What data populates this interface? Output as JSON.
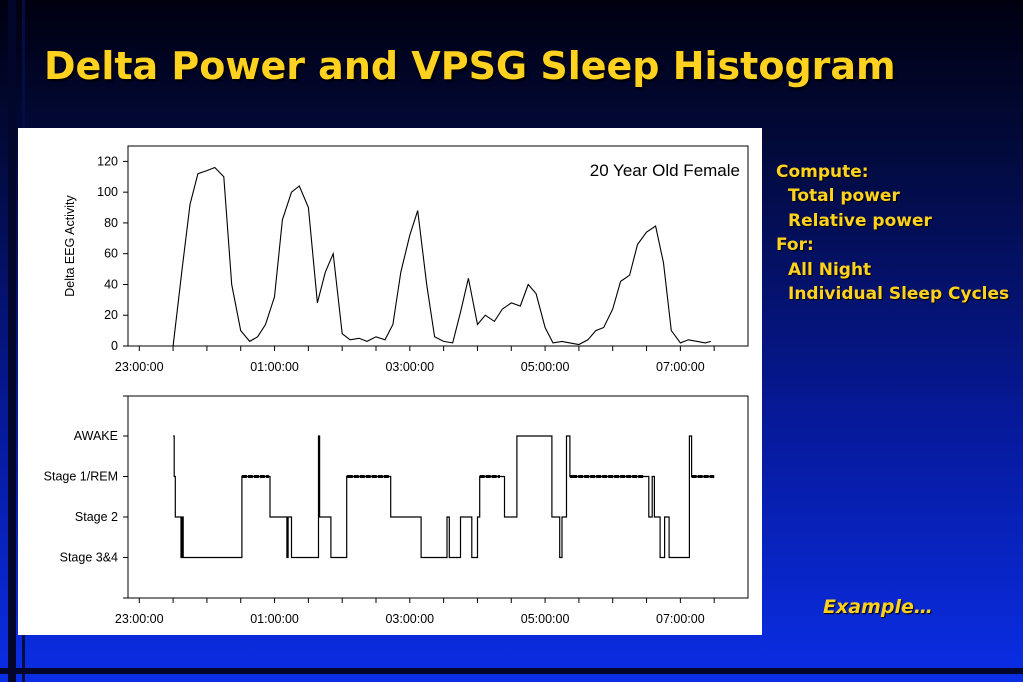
{
  "slide": {
    "title": "Delta Power and VPSG Sleep Histogram",
    "notes": {
      "compute_label": "Compute:",
      "compute_items": [
        "Total power",
        "Relative power"
      ],
      "for_label": "For:",
      "for_items": [
        "All Night",
        "Individual Sleep Cycles"
      ]
    },
    "example_label": "Example…"
  },
  "chart_data": [
    {
      "type": "line",
      "annotation": "20 Year Old Female",
      "ylabel": "Delta EEG Activity",
      "xlabel": "",
      "ylim": [
        0,
        130
      ],
      "yticks": [
        0,
        20,
        40,
        60,
        80,
        100,
        120
      ],
      "x_tick_labels": [
        "23:00:00",
        "01:00:00",
        "03:00:00",
        "05:00:00",
        "07:00:00"
      ],
      "series": [
        {
          "x": [
            "23:30",
            "23:38",
            "23:45",
            "23:52",
            "00:00",
            "00:07",
            "00:15",
            "00:22",
            "00:30",
            "00:38",
            "00:45",
            "00:52",
            "01:00",
            "01:07",
            "01:15",
            "01:22",
            "01:30",
            "01:38",
            "01:45",
            "01:52",
            "02:00",
            "02:07",
            "02:15",
            "02:22",
            "02:30",
            "02:38",
            "02:45",
            "02:52",
            "03:00",
            "03:07",
            "03:15",
            "03:22",
            "03:30",
            "03:38",
            "03:45",
            "03:52",
            "04:00",
            "04:07",
            "04:15",
            "04:22",
            "04:30",
            "04:38",
            "04:45",
            "04:52",
            "05:00",
            "05:07",
            "05:15",
            "05:22",
            "05:30",
            "05:38",
            "05:45",
            "05:52",
            "06:00",
            "06:07",
            "06:15",
            "06:22",
            "06:30",
            "06:38",
            "06:45",
            "06:52",
            "07:00",
            "07:07",
            "07:15",
            "07:22",
            "07:27"
          ],
          "y": [
            0,
            50,
            92,
            112,
            114,
            116,
            110,
            40,
            10,
            3,
            6,
            14,
            32,
            82,
            100,
            104,
            90,
            28,
            48,
            60,
            8,
            4,
            5,
            3,
            6,
            4,
            14,
            48,
            72,
            88,
            40,
            6,
            3,
            2,
            22,
            44,
            14,
            20,
            16,
            24,
            28,
            26,
            40,
            34,
            12,
            2,
            3,
            2,
            1,
            4,
            10,
            12,
            24,
            42,
            46,
            66,
            74,
            78,
            54,
            10,
            2,
            4,
            3,
            2,
            3
          ]
        }
      ]
    },
    {
      "type": "line",
      "ylabel": "",
      "xlabel": "",
      "y_categories": [
        "AWAKE",
        "Stage 1/REM",
        "Stage 2",
        "Stage 3&4"
      ],
      "x_tick_labels": [
        "23:00:00",
        "01:00:00",
        "03:00:00",
        "05:00:00",
        "07:00:00"
      ],
      "series": [
        {
          "x": [
            "23:30",
            "23:31",
            "23:32",
            "23:36",
            "23:37",
            "23:38",
            "23:39",
            "23:40",
            "00:30",
            "00:31",
            "00:55",
            "00:56",
            "01:10",
            "01:11",
            "01:12",
            "01:14",
            "01:15",
            "01:38",
            "01:39",
            "01:40",
            "01:42",
            "01:50",
            "01:52",
            "02:04",
            "02:05",
            "02:42",
            "02:43",
            "03:05",
            "03:10",
            "03:15",
            "03:33",
            "03:35",
            "03:45",
            "03:55",
            "04:00",
            "04:02",
            "04:20",
            "04:24",
            "04:34",
            "04:35",
            "05:06",
            "05:08",
            "05:13",
            "05:15",
            "05:19",
            "05:22",
            "05:24",
            "06:27",
            "06:32",
            "06:35",
            "06:37",
            "06:42",
            "06:46",
            "06:50",
            "07:05",
            "07:08",
            "07:10",
            "07:30"
          ],
          "y": [
            "AWAKE",
            "Stage 1/REM",
            "Stage 2",
            "Stage 2",
            "Stage 3&4",
            "Stage 2",
            "Stage 3&4",
            "Stage 3&4",
            "Stage 3&4",
            "Stage 1/REM",
            "Stage 1/REM",
            "Stage 2",
            "Stage 2",
            "Stage 3&4",
            "Stage 2",
            "Stage 2",
            "Stage 3&4",
            "Stage 3&4",
            "AWAKE",
            "Stage 2",
            "Stage 2",
            "Stage 3&4",
            "Stage 3&4",
            "Stage 1/REM",
            "Stage 1/REM",
            "Stage 1/REM",
            "Stage 2",
            "Stage 2",
            "Stage 3&4",
            "Stage 3&4",
            "Stage 2",
            "Stage 3&4",
            "Stage 2",
            "Stage 3&4",
            "Stage 2",
            "Stage 1/REM",
            "Stage 1/REM",
            "Stage 2",
            "Stage 2",
            "AWAKE",
            "Stage 2",
            "Stage 2",
            "Stage 3&4",
            "Stage 2",
            "AWAKE",
            "Stage 1/REM",
            "Stage 1/REM",
            "Stage 1/REM",
            "Stage 2",
            "Stage 1/REM",
            "Stage 2",
            "Stage 3&4",
            "Stage 2",
            "Stage 3&4",
            "Stage 3&4",
            "AWAKE",
            "Stage 1/REM",
            "Stage 1/REM"
          ]
        }
      ]
    }
  ]
}
